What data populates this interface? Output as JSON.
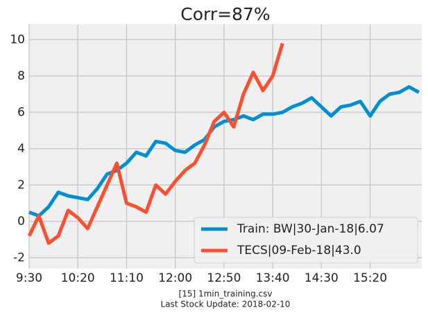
{
  "chart_data": {
    "type": "line",
    "title": "Corr=87%",
    "footer": [
      "[15] 1min_training.csv",
      "Last Stock Update: 2018-02-10"
    ],
    "x": [
      570,
      580,
      590,
      600,
      610,
      620,
      630,
      640,
      650,
      660,
      670,
      680,
      690,
      700,
      710,
      720,
      730,
      740,
      750,
      760,
      770,
      780,
      790,
      800,
      810,
      820,
      830,
      840,
      850,
      860,
      870,
      880,
      890,
      900,
      910,
      920,
      930,
      940,
      950,
      960,
      970
    ],
    "series": [
      {
        "name": "Train: BW|30-Jan-18|6.07",
        "color": "#008fd5",
        "values": [
          0.5,
          0.3,
          0.8,
          1.6,
          1.4,
          1.3,
          1.2,
          1.8,
          2.6,
          2.8,
          3.2,
          3.8,
          3.6,
          4.4,
          4.3,
          3.9,
          3.8,
          4.2,
          4.5,
          5.2,
          5.5,
          5.6,
          5.8,
          5.6,
          5.9,
          5.9,
          6.0,
          6.3,
          6.5,
          6.8,
          6.3,
          5.8,
          6.3,
          6.4,
          6.6,
          5.8,
          6.6,
          7.0,
          7.1,
          7.4,
          7.1
        ]
      },
      {
        "name": "TECS|09-Feb-18|43.0",
        "color": "#fc4f30",
        "values": [
          -0.8,
          0.3,
          -1.2,
          -0.8,
          0.6,
          0.2,
          -0.4,
          0.8,
          2.0,
          3.2,
          1.0,
          0.8,
          0.5,
          2.0,
          1.5,
          2.2,
          2.8,
          3.2,
          4.2,
          5.5,
          6.0,
          5.2,
          7.0,
          8.2,
          7.2,
          8.0,
          9.8,
          null,
          null,
          null,
          null,
          null,
          null,
          null,
          null,
          null,
          null,
          null,
          null,
          null,
          null
        ]
      }
    ],
    "xlim": [
      570,
      973
    ],
    "xticks": [
      {
        "value": 570,
        "label": "9:30"
      },
      {
        "value": 620,
        "label": "10:20"
      },
      {
        "value": 670,
        "label": "11:10"
      },
      {
        "value": 720,
        "label": "12:00"
      },
      {
        "value": 770,
        "label": "12:50"
      },
      {
        "value": 820,
        "label": "13:40"
      },
      {
        "value": 870,
        "label": "14:30"
      },
      {
        "value": 920,
        "label": "15:20"
      }
    ],
    "ylim": [
      -2.6,
      10.85
    ],
    "yticks": [
      -2,
      0,
      2,
      4,
      6,
      8,
      10
    ],
    "grid": true,
    "legend": "lower right"
  }
}
